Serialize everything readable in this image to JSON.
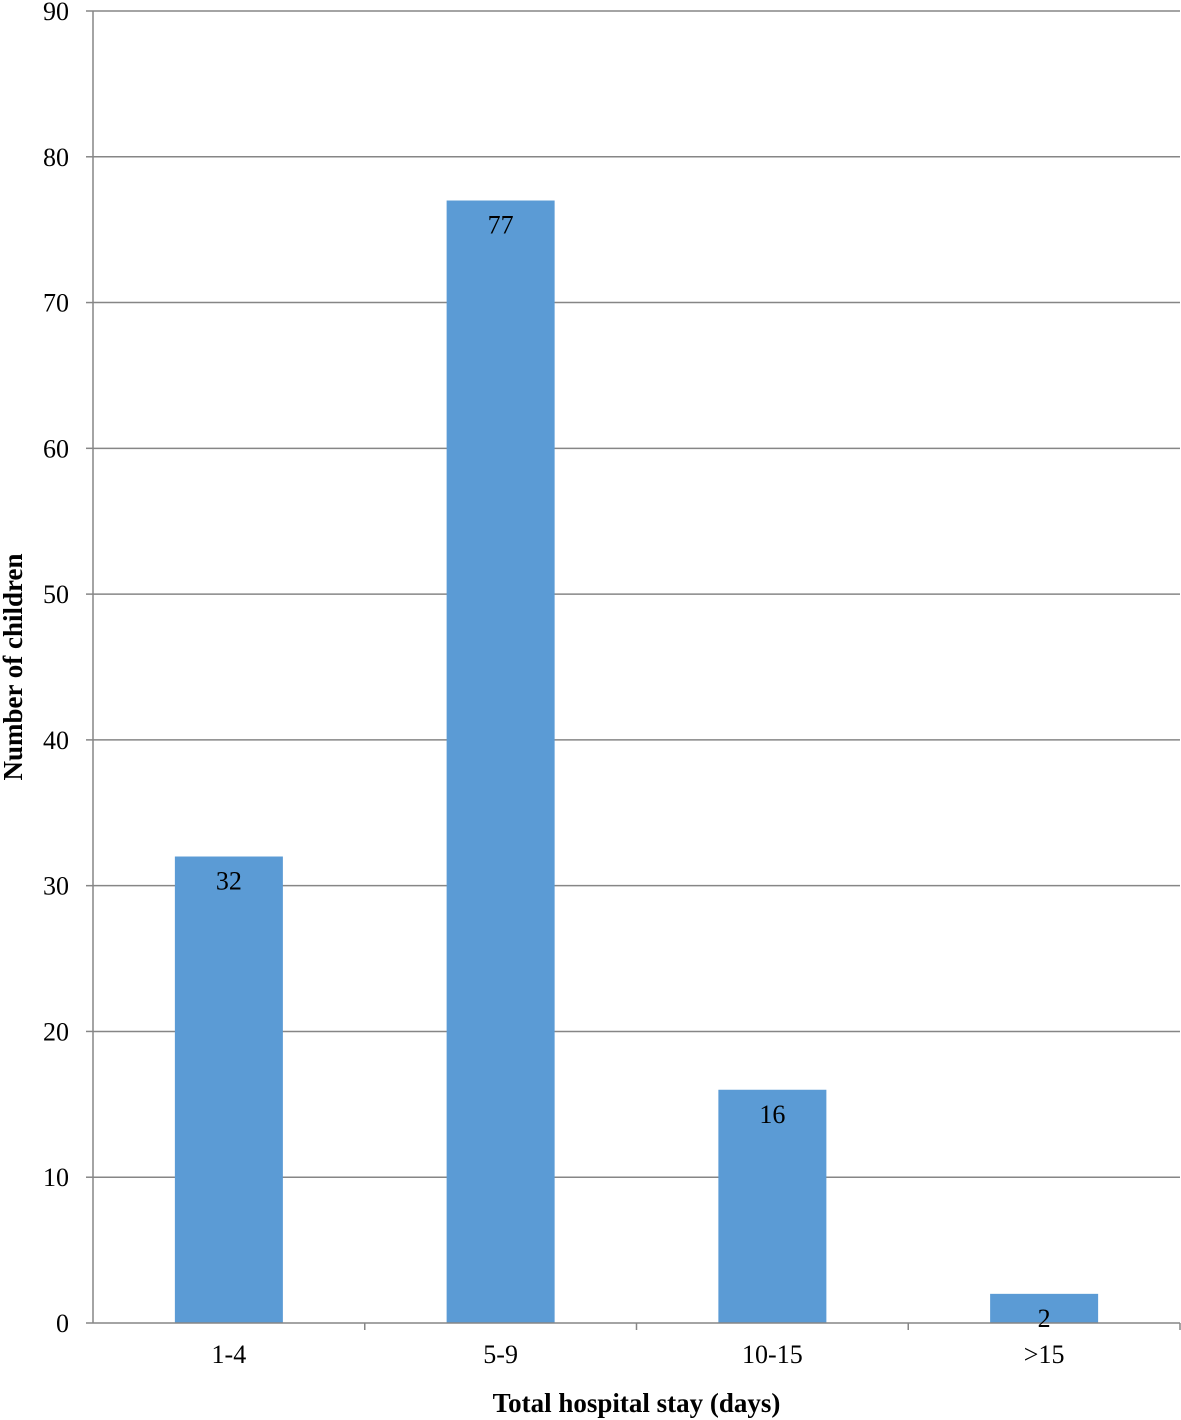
{
  "chart_data": {
    "type": "bar",
    "title": "",
    "xlabel": "Total hospital stay (days)",
    "ylabel": "Number of children",
    "categories": [
      "1-4",
      "5-9",
      "10-15",
      ">15"
    ],
    "values": [
      32,
      77,
      16,
      2
    ],
    "ylim": [
      0,
      90
    ],
    "yticks": [
      0,
      10,
      20,
      30,
      40,
      50,
      60,
      70,
      80,
      90
    ],
    "grid": true,
    "bar_color": "#5B9BD5",
    "grid_color": "#868686"
  }
}
